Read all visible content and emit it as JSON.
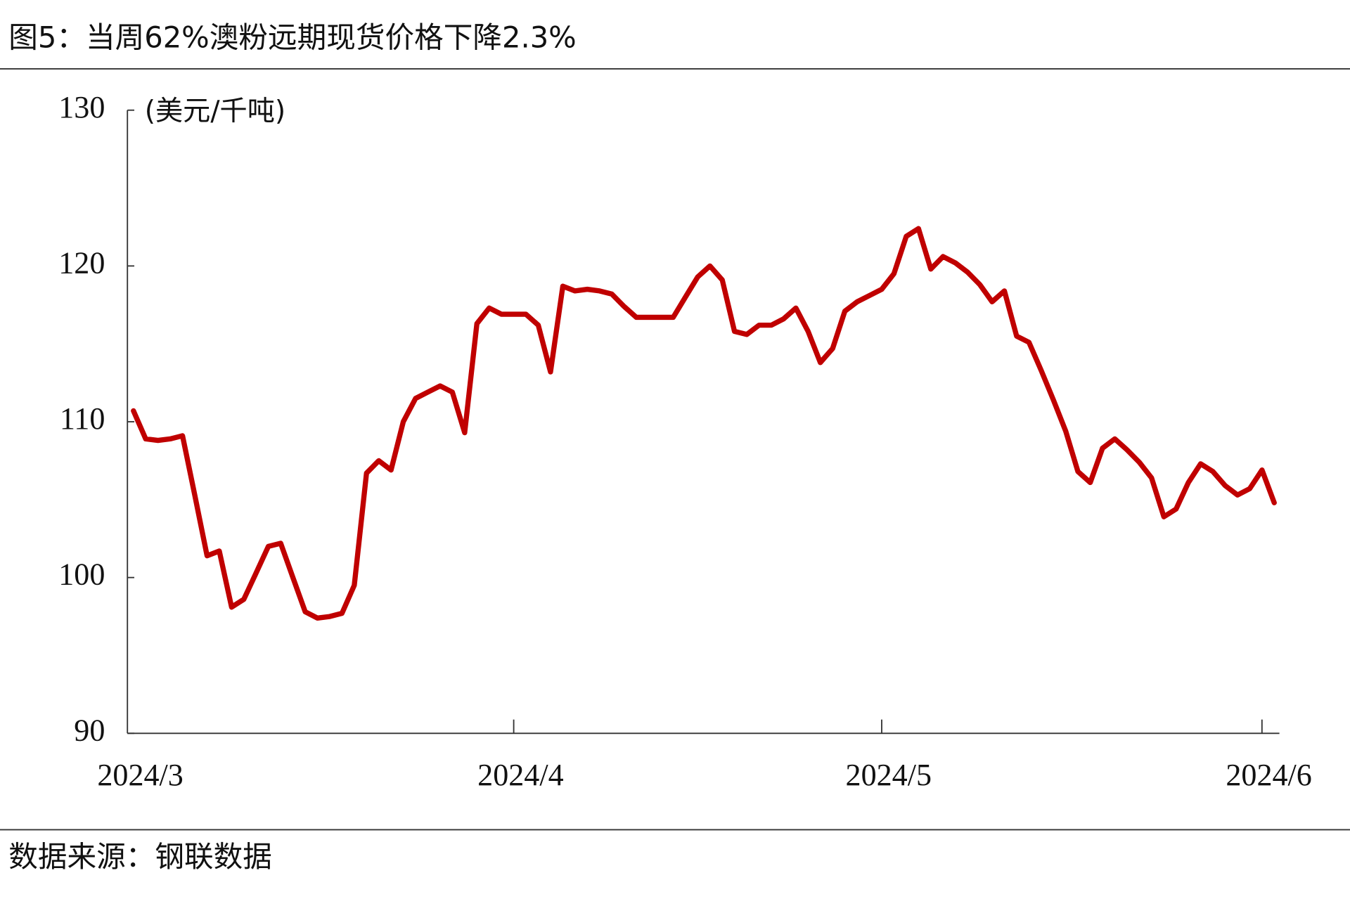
{
  "chart_data": {
    "type": "line",
    "title": "图5：当周62%澳粉远期现货价格下降2.3%",
    "y_label": "(美元/千吨)",
    "source": "数据来源：钢联数据",
    "color": "#c00000",
    "categories": [
      "2024/3",
      null,
      null,
      null,
      null,
      null,
      null,
      null,
      null,
      null,
      null,
      null,
      null,
      null,
      null,
      null,
      null,
      null,
      null,
      null,
      null,
      null,
      null,
      null,
      null,
      null,
      null,
      null,
      null,
      null,
      null,
      "2024/4",
      null,
      null,
      null,
      null,
      null,
      null,
      null,
      null,
      null,
      null,
      null,
      null,
      null,
      null,
      null,
      null,
      null,
      null,
      null,
      null,
      null,
      null,
      null,
      null,
      null,
      null,
      null,
      null,
      null,
      "2024/5",
      null,
      null,
      null,
      null,
      null,
      null,
      null,
      null,
      null,
      null,
      null,
      null,
      null,
      null,
      null,
      null,
      null,
      null,
      null,
      null,
      null,
      null,
      null,
      null,
      null,
      null,
      null,
      null,
      null,
      null,
      "2024/6",
      null
    ],
    "values": [
      110.7,
      108.9,
      108.8,
      108.9,
      109.1,
      105.3,
      101.4,
      101.7,
      98.1,
      98.6,
      100.3,
      102.0,
      102.2,
      100.0,
      97.8,
      97.4,
      97.5,
      97.7,
      99.5,
      106.7,
      107.5,
      106.9,
      110.0,
      111.5,
      111.9,
      112.3,
      111.9,
      109.3,
      116.3,
      117.3,
      116.9,
      116.9,
      116.9,
      116.2,
      113.2,
      118.7,
      118.4,
      118.5,
      118.4,
      118.2,
      117.4,
      116.7,
      116.7,
      116.7,
      116.7,
      118.0,
      119.3,
      120.0,
      119.1,
      115.8,
      115.6,
      116.2,
      116.2,
      116.6,
      117.3,
      115.8,
      113.8,
      114.7,
      117.1,
      117.7,
      118.1,
      118.5,
      119.5,
      121.9,
      122.4,
      119.8,
      120.6,
      120.2,
      119.6,
      118.8,
      117.7,
      118.4,
      115.5,
      115.1,
      113.3,
      111.4,
      109.4,
      106.8,
      106.1,
      108.3,
      108.9,
      108.2,
      107.4,
      106.4,
      103.9,
      104.4,
      106.1,
      107.3,
      106.8,
      105.9,
      105.3,
      105.7,
      106.9,
      104.8
    ],
    "ylim": [
      90,
      130
    ],
    "yticks": [
      90,
      100,
      110,
      120,
      130
    ]
  }
}
